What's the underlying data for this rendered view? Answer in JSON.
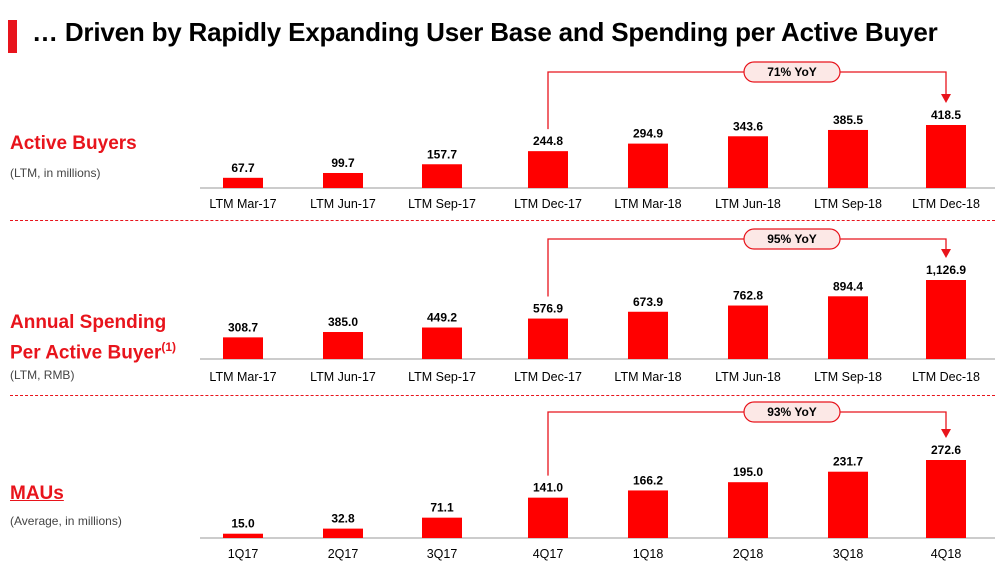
{
  "title": "… Driven by Rapidly Expanding User Base and Spending per Active Buyer",
  "colors": {
    "accent": "#e8141c",
    "bar": "#ff0000"
  },
  "chart_data": [
    {
      "type": "bar",
      "label": "Active Buyers",
      "sublabel": "(LTM, in millions)",
      "categories": [
        "LTM Mar-17",
        "LTM Jun-17",
        "LTM Sep-17",
        "LTM Dec-17",
        "LTM Mar-18",
        "LTM Jun-18",
        "LTM Sep-18",
        "LTM Dec-18"
      ],
      "values": [
        67.7,
        99.7,
        157.7,
        244.8,
        294.9,
        343.6,
        385.5,
        418.5
      ],
      "value_labels": [
        "67.7",
        "99.7",
        "157.7",
        "244.8",
        "294.9",
        "343.6",
        "385.5",
        "418.5"
      ],
      "annotation": {
        "text": "71% YoY",
        "from_index": 3,
        "to_index": 7
      }
    },
    {
      "type": "bar",
      "label": "Annual Spending",
      "label_line2": "Per Active Buyer",
      "label_sup": "(1)",
      "sublabel": "(LTM, RMB)",
      "categories": [
        "LTM Mar-17",
        "LTM Jun-17",
        "LTM Sep-17",
        "LTM Dec-17",
        "LTM Mar-18",
        "LTM Jun-18",
        "LTM Sep-18",
        "LTM Dec-18"
      ],
      "values": [
        308.7,
        385.0,
        449.2,
        576.9,
        673.9,
        762.8,
        894.4,
        1126.9
      ],
      "value_labels": [
        "308.7",
        "385.0",
        "449.2",
        "576.9",
        "673.9",
        "762.8",
        "894.4",
        "1,126.9"
      ],
      "annotation": {
        "text": "95% YoY",
        "from_index": 3,
        "to_index": 7
      }
    },
    {
      "type": "bar",
      "label": "MAUs",
      "sublabel": "(Average, in millions)",
      "categories": [
        "1Q17",
        "2Q17",
        "3Q17",
        "4Q17",
        "1Q18",
        "2Q18",
        "3Q18",
        "4Q18"
      ],
      "values": [
        15.0,
        32.8,
        71.1,
        141.0,
        166.2,
        195.0,
        231.7,
        272.6
      ],
      "value_labels": [
        "15.0",
        "32.8",
        "71.1",
        "141.0",
        "166.2",
        "195.0",
        "231.7",
        "272.6"
      ],
      "annotation": {
        "text": "93% YoY",
        "from_index": 3,
        "to_index": 7
      }
    }
  ]
}
